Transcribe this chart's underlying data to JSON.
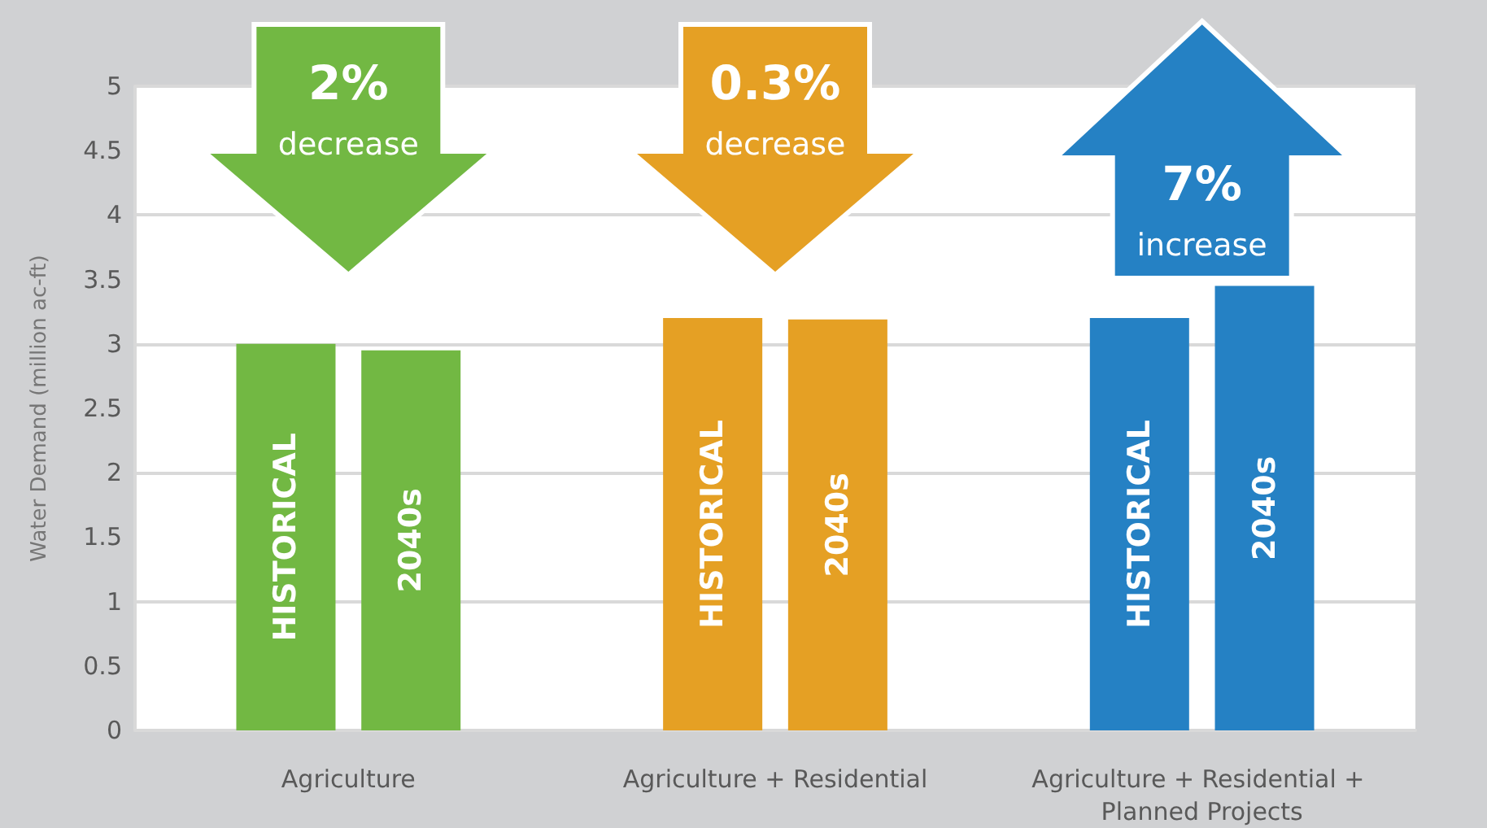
{
  "chart_data": {
    "type": "bar",
    "ylabel": "Water Demand (million ac-ft)",
    "categories": [
      "Agriculture",
      "Agriculture + Residential",
      "Agriculture + Residential + Planned Projects"
    ],
    "series": [
      {
        "name": "HISTORICAL",
        "colors": [
          "#72b843",
          "#e5a024",
          "#2581c4"
        ],
        "values": [
          3.0,
          3.2,
          3.2
        ]
      },
      {
        "name": "2040s",
        "colors": [
          "#72b843",
          "#e5a024",
          "#2581c4"
        ],
        "values": [
          2.95,
          3.19,
          3.45
        ]
      }
    ],
    "ylim": [
      0,
      5
    ],
    "yticks": [
      0,
      0.5,
      1,
      1.5,
      2,
      2.5,
      3,
      3.5,
      4,
      4.5,
      5
    ],
    "grid": "y",
    "annotations": [
      "2%\ndecrease",
      "0.3%\ndecrease",
      "7%\nincrease"
    ]
  }
}
